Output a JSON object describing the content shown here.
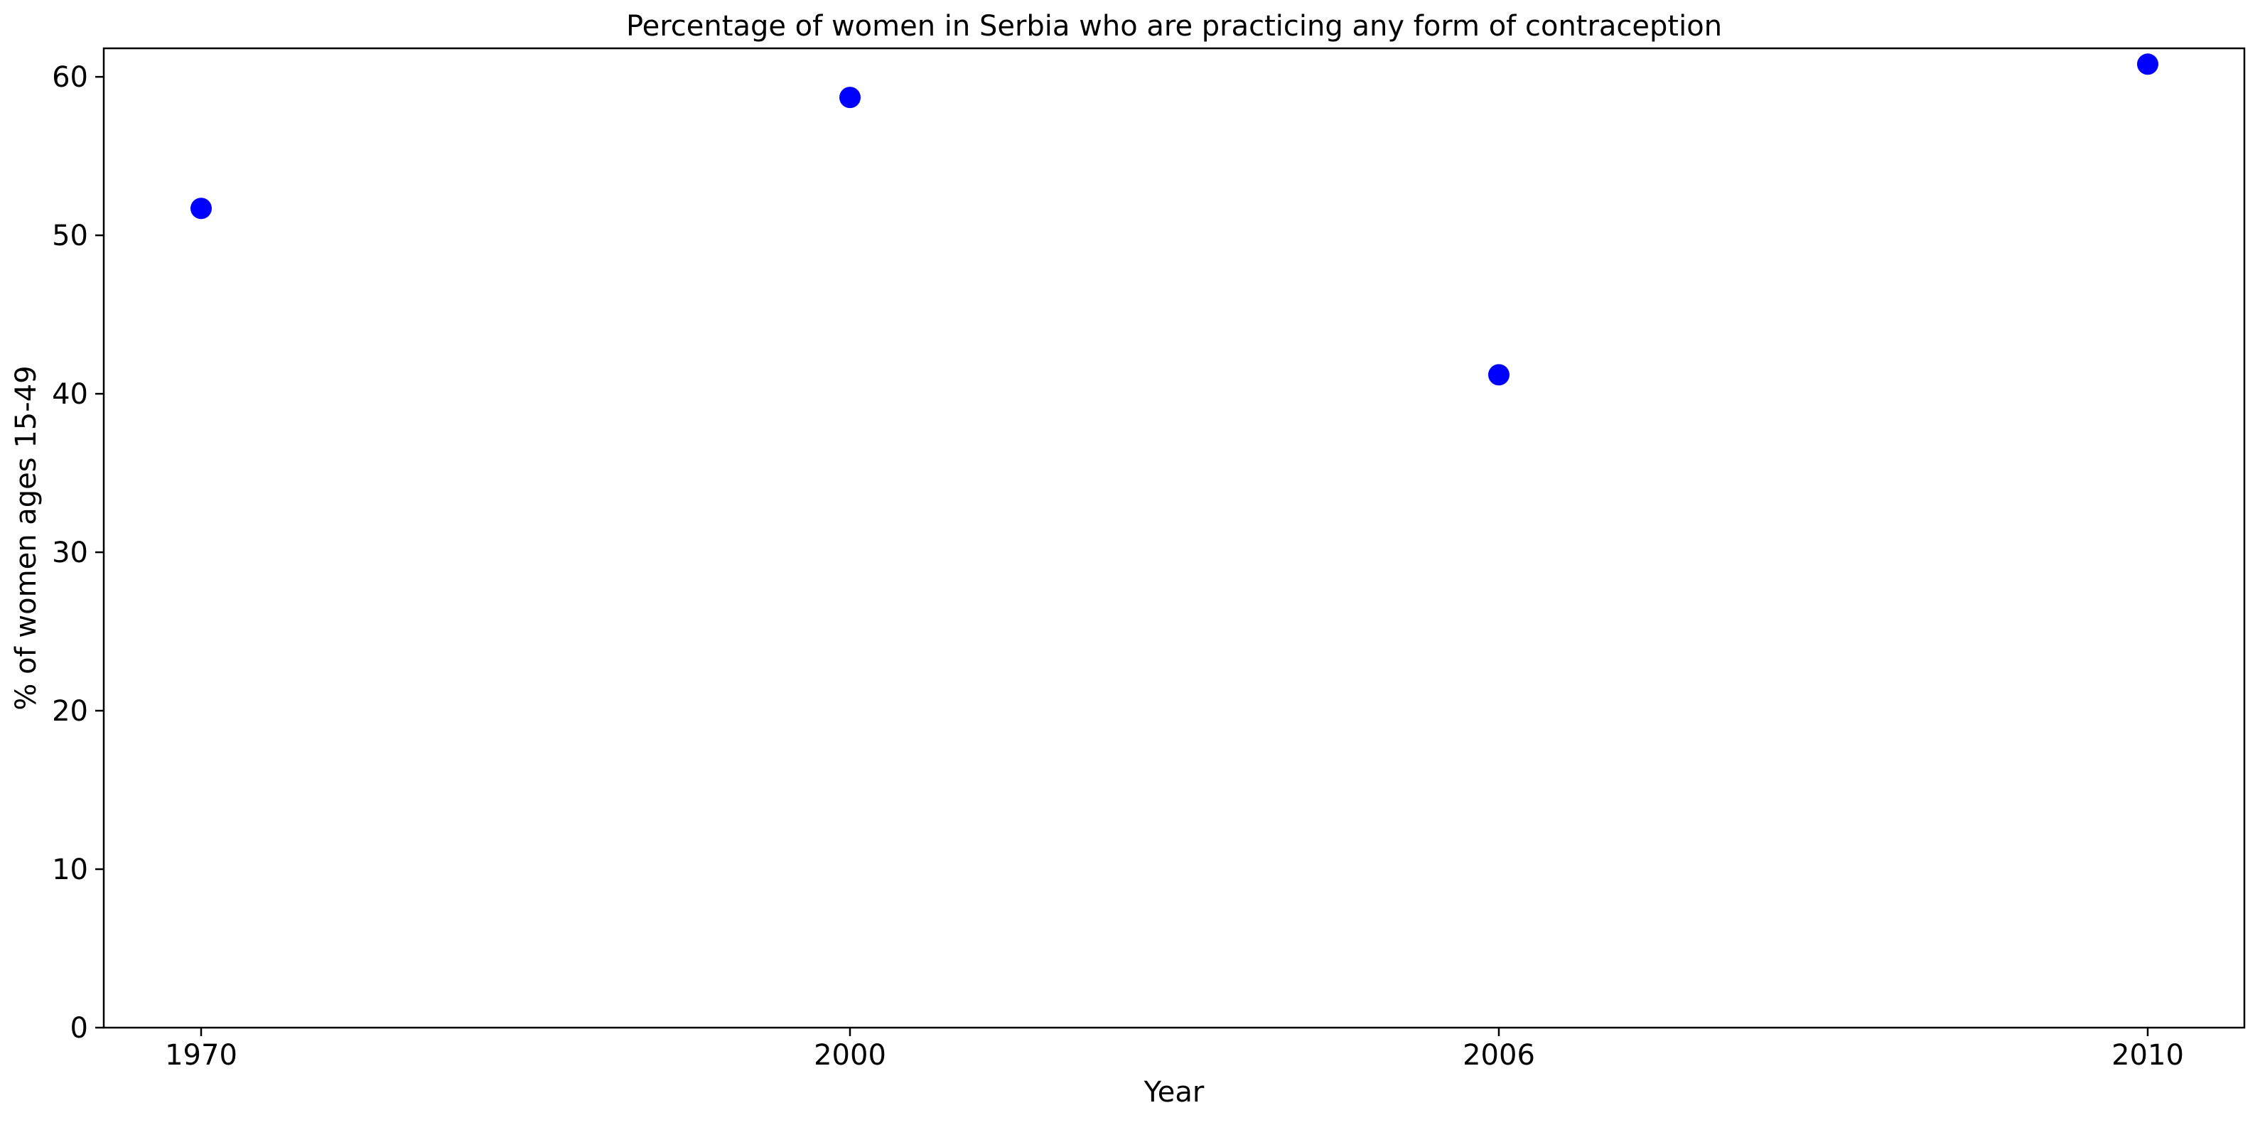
{
  "chart_data": {
    "type": "scatter",
    "title": "Percentage of women in Serbia who are practicing any form of contraception",
    "xlabel": "Year",
    "ylabel": "% of women ages 15-49",
    "categories": [
      "1970",
      "2000",
      "2006",
      "2010"
    ],
    "series": [
      {
        "values": [
          51.7,
          58.7,
          41.2,
          60.8
        ],
        "color": "#0000ff"
      }
    ],
    "ylim": [
      0,
      61.8
    ],
    "yticks": [
      0,
      10,
      20,
      30,
      40,
      50,
      60
    ],
    "grid": false,
    "legend": "none",
    "marker": "circle"
  }
}
